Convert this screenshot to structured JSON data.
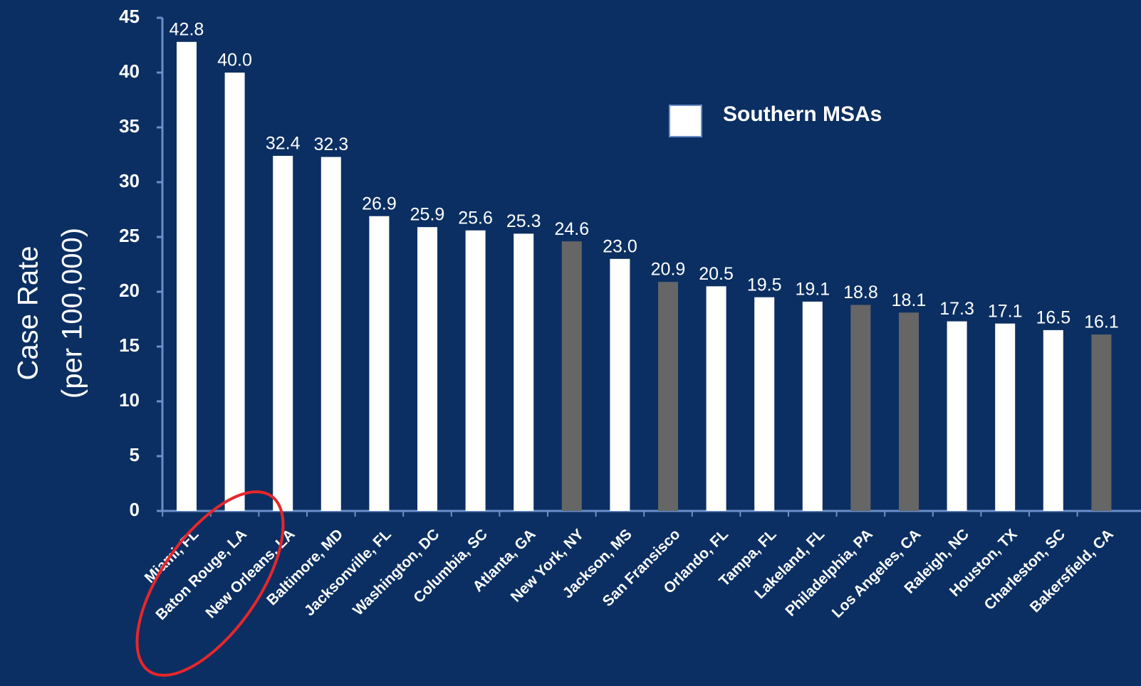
{
  "chart_data": {
    "type": "bar",
    "y_label": [
      "Case Rate",
      "(per 100,000)"
    ],
    "categories": [
      "Miami, FL",
      "Baton Rouge, LA",
      "New Orleans, LA",
      "Baltimore, MD",
      "Jacksonville, FL",
      "Washington, DC",
      "Columbia, SC",
      "Atlanta, GA",
      "New York, NY",
      "Jackson, MS",
      "San Fransisco",
      "Orlando, FL",
      "Tampa, FL",
      "Lakeland, FL",
      "Philadelphia, PA",
      "Los Angeles, CA",
      "Raleigh, NC",
      "Houston, TX",
      "Charleston, SC",
      "Bakersfield, CA"
    ],
    "series": [
      {
        "name": "Southern MSAs",
        "color": "#ffffff",
        "values": [
          42.8,
          40.0,
          32.4,
          32.3,
          26.9,
          25.9,
          25.6,
          25.3,
          24.6,
          23.0,
          20.9,
          20.5,
          19.5,
          19.1,
          18.8,
          18.1,
          17.3,
          17.1,
          16.5,
          16.1
        ],
        "value_labels": [
          "42.8",
          "40.0",
          "32.4",
          "32.3",
          "26.9",
          "25.9",
          "25.6",
          "25.3",
          "24.6",
          "23.0",
          "20.9",
          "20.5",
          "19.5",
          "19.1",
          "18.8",
          "18.1",
          "17.3",
          "17.1",
          "16.5",
          "16.1"
        ],
        "colors": [
          "#ffffff",
          "#ffffff",
          "#ffffff",
          "#ffffff",
          "#ffffff",
          "#ffffff",
          "#ffffff",
          "#ffffff",
          "#666666",
          "#ffffff",
          "#666666",
          "#ffffff",
          "#ffffff",
          "#ffffff",
          "#666666",
          "#666666",
          "#ffffff",
          "#ffffff",
          "#ffffff",
          "#666666"
        ]
      }
    ],
    "ylim": [
      0,
      45
    ],
    "yticks": [
      0,
      5,
      10,
      15,
      20,
      25,
      30,
      35,
      40,
      45
    ],
    "grid": false,
    "legend": "upper right"
  }
}
